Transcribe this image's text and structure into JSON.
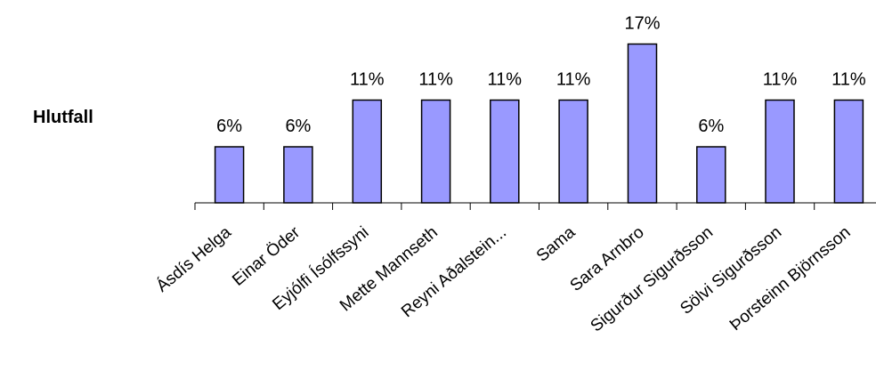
{
  "chart_data": {
    "type": "bar",
    "series": [
      {
        "name": "Hlutfall",
        "values": [
          6,
          6,
          11,
          11,
          11,
          11,
          17,
          6,
          11,
          11
        ]
      }
    ],
    "categories": [
      "Ásdís Helga",
      "Einar Öder",
      "Eyjólfi Ísólfssyni",
      "Mette Mannseth",
      "Reyni Aðalstein...",
      "Sama",
      "Sara Arnbro",
      "Sigurður Sigurðsson",
      "Sölvi Sigurðsson",
      "Þorsteinn Björnsson"
    ],
    "data_labels": [
      "6%",
      "6%",
      "11%",
      "11%",
      "11%",
      "11%",
      "17%",
      "6%",
      "11%",
      "11%"
    ],
    "bar_color": "#9999ff",
    "bar_edge_color": "#000000",
    "legend": "left",
    "grid": false,
    "ylim": [
      0,
      17
    ]
  }
}
